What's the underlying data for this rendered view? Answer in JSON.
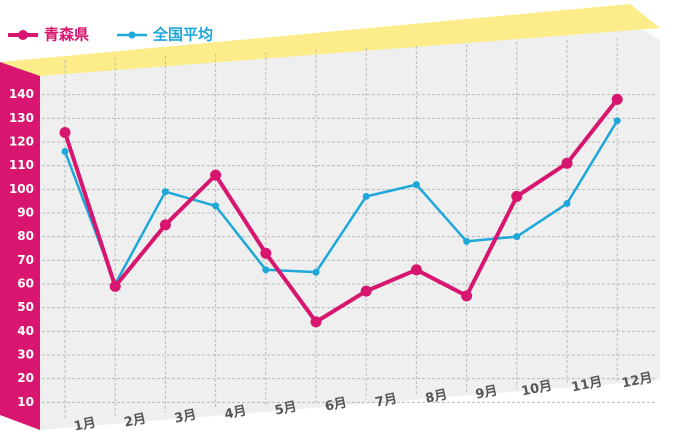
{
  "chart_data": {
    "type": "line",
    "categories": [
      "1月",
      "2月",
      "3月",
      "4月",
      "5月",
      "6月",
      "7月",
      "8月",
      "9月",
      "10月",
      "11月",
      "12月"
    ],
    "series": [
      {
        "name": "青森県",
        "color": "#d8166f",
        "values": [
          124,
          59,
          85,
          106,
          73,
          44,
          57,
          66,
          55,
          97,
          111,
          138
        ]
      },
      {
        "name": "全国平均",
        "color": "#1ea7d9",
        "values": [
          116,
          60,
          99,
          93,
          66,
          65,
          97,
          102,
          78,
          80,
          94,
          129
        ]
      }
    ],
    "ylim": [
      0,
      150
    ],
    "yticks": [
      10,
      20,
      30,
      40,
      50,
      60,
      70,
      80,
      90,
      100,
      110,
      120,
      130,
      140
    ],
    "grid": true
  }
}
